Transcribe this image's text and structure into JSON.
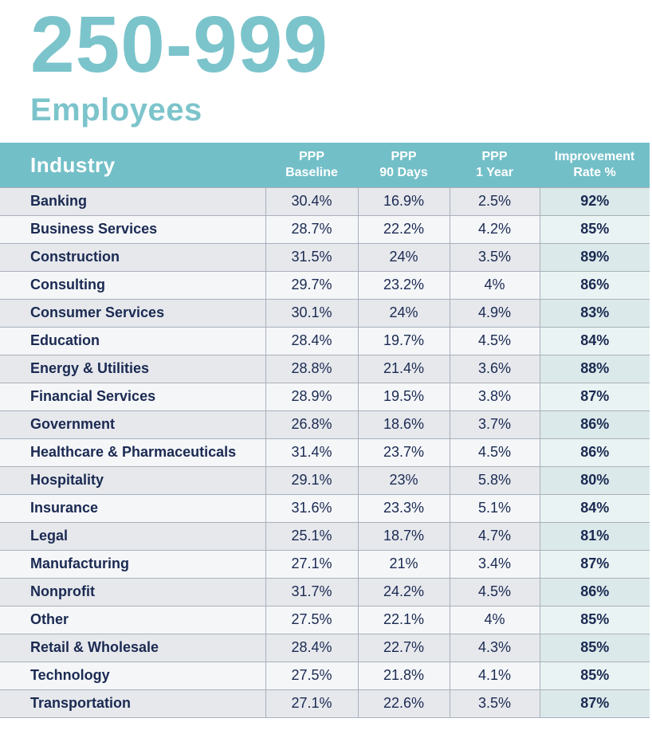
{
  "page": {
    "title": "250-999",
    "subtitle": "Employees"
  },
  "colors": {
    "accent_teal": "#7CC4CB",
    "header_teal": "#73BFC8",
    "navy": "#1B2A52",
    "row_odd": "#E6E8EC",
    "row_even": "#F4F6F8",
    "rate_odd": "#DBE9EA",
    "rate_even": "#EAF3F3",
    "border": "#A9B1BC"
  },
  "chart_data": {
    "type": "table",
    "title": "250-999 Employees",
    "columns": [
      "Industry",
      "PPP Baseline",
      "PPP 90 Days",
      "PPP 1 Year",
      "Improvement Rate %"
    ],
    "columns_display": [
      "Industry",
      "PPP\nBaseline",
      "PPP\n90 Days",
      "PPP\n1 Year",
      "Improvement\nRate %"
    ],
    "rows": [
      [
        "Banking",
        "30.4%",
        "16.9%",
        "2.5%",
        "92%"
      ],
      [
        "Business Services",
        "28.7%",
        "22.2%",
        "4.2%",
        "85%"
      ],
      [
        "Construction",
        "31.5%",
        "24%",
        "3.5%",
        "89%"
      ],
      [
        "Consulting",
        "29.7%",
        "23.2%",
        "4%",
        "86%"
      ],
      [
        "Consumer Services",
        "30.1%",
        "24%",
        "4.9%",
        "83%"
      ],
      [
        "Education",
        "28.4%",
        "19.7%",
        "4.5%",
        "84%"
      ],
      [
        "Energy & Utilities",
        "28.8%",
        "21.4%",
        "3.6%",
        "88%"
      ],
      [
        "Financial Services",
        "28.9%",
        "19.5%",
        "3.8%",
        "87%"
      ],
      [
        "Government",
        "26.8%",
        "18.6%",
        "3.7%",
        "86%"
      ],
      [
        "Healthcare & Pharmaceuticals",
        "31.4%",
        "23.7%",
        "4.5%",
        "86%"
      ],
      [
        "Hospitality",
        "29.1%",
        "23%",
        "5.8%",
        "80%"
      ],
      [
        "Insurance",
        "31.6%",
        "23.3%",
        "5.1%",
        "84%"
      ],
      [
        "Legal",
        "25.1%",
        "18.7%",
        "4.7%",
        "81%"
      ],
      [
        "Manufacturing",
        "27.1%",
        "21%",
        "3.4%",
        "87%"
      ],
      [
        "Nonprofit",
        "31.7%",
        "24.2%",
        "4.5%",
        "86%"
      ],
      [
        "Other",
        "27.5%",
        "22.1%",
        "4%",
        "85%"
      ],
      [
        "Retail & Wholesale",
        "28.4%",
        "22.7%",
        "4.3%",
        "85%"
      ],
      [
        "Technology",
        "27.5%",
        "21.8%",
        "4.1%",
        "85%"
      ],
      [
        "Transportation",
        "27.1%",
        "22.6%",
        "3.5%",
        "87%"
      ]
    ]
  }
}
